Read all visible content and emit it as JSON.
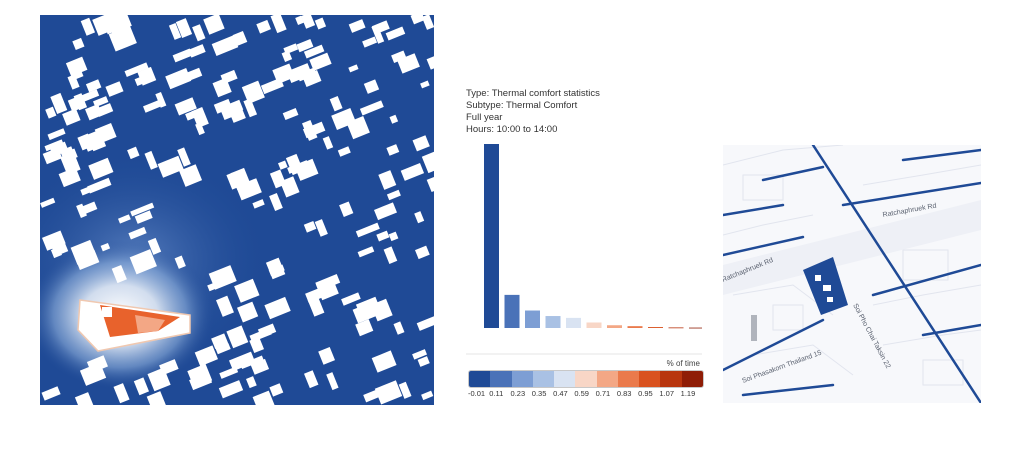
{
  "header": {
    "type_line": "Type: Thermal comfort statistics",
    "subtype_line": "Subtype: Thermal Comfort",
    "period_line": "Full year",
    "hours_line": "Hours: 10:00 to 14:00"
  },
  "legend": {
    "title": "% of time",
    "tick_labels": [
      "-0.01",
      "0.11",
      "0.23",
      "0.35",
      "0.47",
      "0.59",
      "0.71",
      "0.83",
      "0.95",
      "1.07",
      "1.19"
    ],
    "colors": [
      "#1f4a96",
      "#4a72b8",
      "#7d9ed4",
      "#a9c1e4",
      "#d9e3f2",
      "#f8d6c6",
      "#f3a785",
      "#ea7a4c",
      "#d9521f",
      "#b8350e",
      "#8f1d06"
    ]
  },
  "chart_data": {
    "type": "bar",
    "categories": [
      "-0.01",
      "0.11",
      "0.23",
      "0.35",
      "0.47",
      "0.59",
      "0.71",
      "0.83",
      "0.95",
      "1.07",
      "1.19"
    ],
    "values": [
      100,
      18,
      9.5,
      6.5,
      5.5,
      3,
      1.5,
      1,
      0.5,
      0.3,
      0.2
    ],
    "colors": [
      "#1f4a96",
      "#4a72b8",
      "#7d9ed4",
      "#a9c1e4",
      "#d9e3f2",
      "#f8d6c6",
      "#f3a785",
      "#ea7a4c",
      "#d9521f",
      "#b8350e",
      "#8f1d06"
    ],
    "title": "",
    "xlabel": "",
    "ylabel": "% of time",
    "ylim": [
      0,
      100
    ]
  },
  "map": {
    "road_labels": [
      "Ratchaphruek Rd",
      "Ratchaphruek Rd",
      "Soi Pho Chai Taksin 22",
      "Soi Phasakorn Thailand 15"
    ]
  }
}
